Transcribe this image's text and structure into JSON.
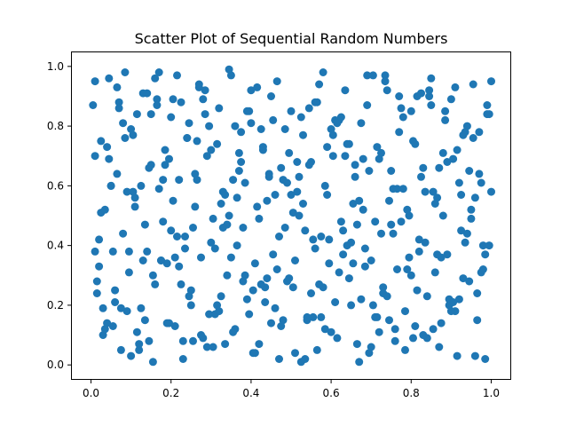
{
  "chart_data": {
    "type": "scatter",
    "title": "Scatter Plot of Sequential Random Numbers",
    "xlabel": "",
    "ylabel": "",
    "xlim": [
      -0.05,
      1.05
    ],
    "ylim": [
      -0.05,
      1.05
    ],
    "x_ticks": [
      0.0,
      0.2,
      0.4,
      0.6,
      0.8,
      1.0
    ],
    "y_ticks": [
      0.0,
      0.2,
      0.4,
      0.6,
      0.8,
      1.0
    ],
    "x_tick_labels": [
      "0.0",
      "0.2",
      "0.4",
      "0.6",
      "0.8",
      "1.0"
    ],
    "y_tick_labels": [
      "0.0",
      "0.2",
      "0.4",
      "0.6",
      "0.8",
      "1.0"
    ],
    "grid": false,
    "marker_color": "#1f77b4",
    "series": [
      {
        "x": [
          0.01,
          0.02,
          0.03,
          0.04,
          0.05,
          0.06,
          0.07,
          0.08,
          0.09,
          0.1,
          0.11,
          0.12,
          0.13,
          0.14,
          0.15,
          0.16,
          0.17,
          0.18,
          0.19,
          0.2,
          0.21,
          0.22,
          0.23,
          0.24,
          0.25,
          0.26,
          0.27,
          0.28,
          0.29,
          0.3,
          0.31,
          0.32,
          0.33,
          0.34,
          0.35,
          0.36,
          0.37,
          0.38,
          0.39,
          0.4,
          0.41,
          0.42,
          0.43,
          0.44,
          0.45,
          0.46,
          0.47,
          0.48,
          0.49,
          0.5,
          0.51,
          0.52,
          0.53,
          0.54,
          0.55,
          0.56,
          0.57,
          0.58,
          0.59,
          0.6,
          0.61,
          0.62,
          0.63,
          0.64,
          0.65,
          0.66,
          0.67,
          0.68,
          0.69,
          0.7,
          0.71,
          0.72,
          0.73,
          0.74,
          0.75,
          0.76,
          0.77,
          0.78,
          0.79,
          0.8,
          0.81,
          0.82,
          0.83,
          0.84,
          0.85,
          0.86,
          0.87,
          0.88,
          0.89,
          0.9,
          0.91,
          0.92,
          0.93,
          0.94,
          0.95,
          0.96,
          0.97,
          0.98,
          0.99,
          1.0,
          0.005,
          0.015,
          0.025,
          0.035,
          0.045,
          0.055,
          0.065,
          0.075,
          0.085,
          0.095,
          0.105,
          0.115,
          0.125,
          0.135,
          0.145,
          0.155,
          0.165,
          0.175,
          0.185,
          0.195,
          0.205,
          0.215,
          0.225,
          0.235,
          0.245,
          0.255,
          0.265,
          0.275,
          0.285,
          0.295,
          0.305,
          0.315,
          0.325,
          0.335,
          0.345,
          0.355,
          0.365,
          0.375,
          0.385,
          0.395,
          0.405,
          0.415,
          0.425,
          0.435,
          0.445,
          0.455,
          0.465,
          0.475,
          0.485,
          0.495,
          0.505,
          0.515,
          0.525,
          0.535,
          0.545,
          0.555,
          0.565,
          0.575,
          0.585,
          0.595,
          0.605,
          0.615,
          0.625,
          0.635,
          0.645,
          0.655,
          0.665,
          0.675,
          0.685,
          0.695,
          0.705,
          0.715,
          0.725,
          0.735,
          0.745,
          0.755,
          0.765,
          0.775,
          0.785,
          0.795,
          0.805,
          0.815,
          0.825,
          0.835,
          0.845,
          0.855,
          0.865,
          0.875,
          0.885,
          0.895,
          0.905,
          0.915,
          0.925,
          0.935,
          0.945,
          0.955,
          0.965,
          0.975,
          0.985,
          0.995
        ],
        "y": [
          0.95,
          0.33,
          0.1,
          0.73,
          0.6,
          0.21,
          0.88,
          0.44,
          0.18,
          0.79,
          0.56,
          0.05,
          0.91,
          0.38,
          0.67,
          0.27,
          0.98,
          0.48,
          0.14,
          0.83,
          0.36,
          0.62,
          0.02,
          0.76,
          0.25,
          0.53,
          0.93,
          0.09,
          0.7,
          0.41,
          0.17,
          0.86,
          0.58,
          0.3,
          0.97,
          0.12,
          0.65,
          0.46,
          0.22,
          0.81,
          0.34,
          0.07,
          0.72,
          0.55,
          0.9,
          0.19,
          0.43,
          0.62,
          0.28,
          0.85,
          0.04,
          0.5,
          0.77,
          0.15,
          0.68,
          0.39,
          0.94,
          0.26,
          0.57,
          0.11,
          0.82,
          0.31,
          0.45,
          0.74,
          0.2,
          0.63,
          0.01,
          0.52,
          0.87,
          0.35,
          0.16,
          0.69,
          0.24,
          0.92,
          0.47,
          0.08,
          0.78,
          0.59,
          0.32,
          0.85,
          0.13,
          0.42,
          0.66,
          0.23,
          0.96,
          0.54,
          0.06,
          0.71,
          0.37,
          0.89,
          0.18,
          0.61,
          0.29,
          0.8,
          0.49,
          0.03,
          0.64,
          0.4,
          0.84,
          0.58,
          0.87,
          0.24,
          0.51,
          0.12,
          0.69,
          0.38,
          0.93,
          0.05,
          0.76,
          0.31,
          0.58,
          0.84,
          0.19,
          0.47,
          0.66,
          0.01,
          0.89,
          0.35,
          0.72,
          0.14,
          0.55,
          0.97,
          0.27,
          0.43,
          0.81,
          0.08,
          0.62,
          0.36,
          0.92,
          0.17,
          0.49,
          0.74,
          0.23,
          0.57,
          0.99,
          0.11,
          0.4,
          0.68,
          0.3,
          0.85,
          0.04,
          0.53,
          0.79,
          0.21,
          0.64,
          0.37,
          0.95,
          0.13,
          0.46,
          0.71,
          0.26,
          0.58,
          0.83,
          0.02,
          0.67,
          0.42,
          0.88,
          0.16,
          0.6,
          0.34,
          0.77,
          0.09,
          0.48,
          0.92,
          0.29,
          0.54,
          0.07,
          0.81,
          0.39,
          0.65,
          0.2,
          0.73,
          0.44,
          0.97,
          0.15,
          0.59,
          0.32,
          0.86,
          0.05,
          0.5,
          0.75,
          0.25,
          0.63,
          0.41,
          0.9,
          0.12,
          0.56,
          0.36,
          0.82,
          0.22,
          0.69,
          0.03,
          0.45,
          0.78,
          0.28,
          0.94,
          0.15,
          0.61,
          0.37,
          0.84
        ]
      },
      {
        "x": [
          0.02,
          0.07,
          0.12,
          0.17,
          0.22,
          0.27,
          0.32,
          0.37,
          0.42,
          0.47,
          0.52,
          0.57,
          0.62,
          0.67,
          0.72,
          0.77,
          0.82,
          0.87,
          0.92,
          0.97,
          0.04,
          0.09,
          0.14,
          0.19,
          0.24,
          0.29,
          0.34,
          0.39,
          0.44,
          0.49,
          0.54,
          0.59,
          0.64,
          0.69,
          0.74,
          0.79,
          0.84,
          0.89,
          0.94,
          0.99,
          0.01,
          0.06,
          0.11,
          0.16,
          0.21,
          0.26,
          0.31,
          0.36,
          0.41,
          0.46,
          0.51,
          0.56,
          0.61,
          0.66,
          0.71,
          0.76,
          0.81,
          0.86,
          0.91,
          0.96,
          0.03,
          0.08,
          0.13,
          0.18,
          0.23,
          0.28,
          0.33,
          0.38,
          0.43,
          0.48,
          0.53,
          0.58,
          0.63,
          0.68,
          0.73,
          0.78,
          0.83,
          0.88,
          0.93,
          0.98,
          0.05,
          0.1,
          0.15,
          0.2,
          0.25,
          0.3,
          0.35,
          0.4,
          0.45,
          0.5,
          0.55,
          0.6,
          0.65,
          0.7,
          0.75,
          0.8,
          0.85,
          0.9,
          0.95,
          1.0,
          0.015,
          0.065,
          0.115,
          0.165,
          0.215,
          0.265,
          0.315,
          0.365,
          0.415,
          0.465,
          0.515,
          0.565,
          0.615,
          0.665,
          0.715,
          0.765,
          0.815,
          0.865,
          0.915,
          0.965,
          0.035,
          0.085,
          0.135,
          0.185,
          0.235,
          0.285,
          0.335,
          0.385,
          0.435,
          0.485,
          0.535,
          0.585,
          0.635,
          0.685,
          0.735,
          0.785,
          0.835,
          0.885,
          0.935,
          0.985,
          0.025,
          0.075,
          0.125,
          0.175,
          0.225,
          0.275,
          0.325,
          0.375,
          0.425,
          0.475,
          0.525,
          0.575,
          0.625,
          0.675,
          0.725,
          0.775,
          0.825,
          0.875,
          0.925,
          0.975,
          0.045,
          0.095,
          0.145,
          0.195,
          0.245,
          0.295,
          0.345,
          0.395,
          0.445,
          0.495,
          0.545,
          0.595,
          0.645,
          0.695,
          0.745,
          0.795,
          0.845,
          0.895,
          0.945,
          0.995,
          0.055,
          0.105,
          0.155,
          0.205,
          0.255,
          0.305,
          0.355,
          0.405,
          0.455,
          0.505,
          0.555,
          0.605,
          0.655,
          0.705,
          0.755,
          0.805,
          0.855,
          0.905,
          0.955,
          0.01
        ],
        "y": [
          0.42,
          0.86,
          0.07,
          0.59,
          0.33,
          0.94,
          0.18,
          0.71,
          0.49,
          0.02,
          0.63,
          0.27,
          0.82,
          0.55,
          0.11,
          0.9,
          0.38,
          0.66,
          0.22,
          0.78,
          0.14,
          0.58,
          0.91,
          0.34,
          0.76,
          0.06,
          0.47,
          0.85,
          0.29,
          0.61,
          0.16,
          0.73,
          0.4,
          0.97,
          0.23,
          0.52,
          0.09,
          0.68,
          0.44,
          0.87,
          0.7,
          0.25,
          0.53,
          0.96,
          0.13,
          0.64,
          0.39,
          0.8,
          0.04,
          0.57,
          0.35,
          0.88,
          0.21,
          0.67,
          0.48,
          0.12,
          0.74,
          0.31,
          0.93,
          0.56,
          0.19,
          0.81,
          0.35,
          0.62,
          0.08,
          0.89,
          0.46,
          0.28,
          0.73,
          0.15,
          0.54,
          0.98,
          0.37,
          0.69,
          0.26,
          0.83,
          0.1,
          0.5,
          0.77,
          0.32,
          0.6,
          0.03,
          0.84,
          0.45,
          0.2,
          0.72,
          0.36,
          0.92,
          0.14,
          0.57,
          0.24,
          0.79,
          0.41,
          0.06,
          0.65,
          0.3,
          0.87,
          0.18,
          0.52,
          0.95,
          0.28,
          0.64,
          0.11,
          0.87,
          0.43,
          0.75,
          0.2,
          0.56,
          0.93,
          0.32,
          0.68,
          0.05,
          0.81,
          0.47,
          0.16,
          0.59,
          0.9,
          0.37,
          0.72,
          0.24,
          0.52,
          0.98,
          0.15,
          0.67,
          0.39,
          0.84,
          0.07,
          0.61,
          0.26,
          0.79,
          0.45,
          0.12,
          0.7,
          0.33,
          0.95,
          0.18,
          0.58,
          0.85,
          0.41,
          0.02,
          0.75,
          0.19,
          0.6,
          0.35,
          0.88,
          0.1,
          0.54,
          0.78,
          0.27,
          0.66,
          0.01,
          0.43,
          0.83,
          0.22,
          0.71,
          0.48,
          0.91,
          0.14,
          0.57,
          0.31,
          0.96,
          0.38,
          0.08,
          0.69,
          0.23,
          0.8,
          0.5,
          0.17,
          0.63,
          0.29,
          0.86,
          0.42,
          0.74,
          0.04,
          0.55,
          0.36,
          0.92,
          0.2,
          0.65,
          0.4,
          0.13,
          0.77,
          0.3,
          0.89,
          0.46,
          0.06,
          0.62,
          0.25,
          0.82,
          0.51,
          0.16,
          0.7,
          0.34,
          0.97,
          0.44,
          0.09,
          0.58,
          0.21,
          0.76,
          0.38
        ]
      }
    ]
  }
}
